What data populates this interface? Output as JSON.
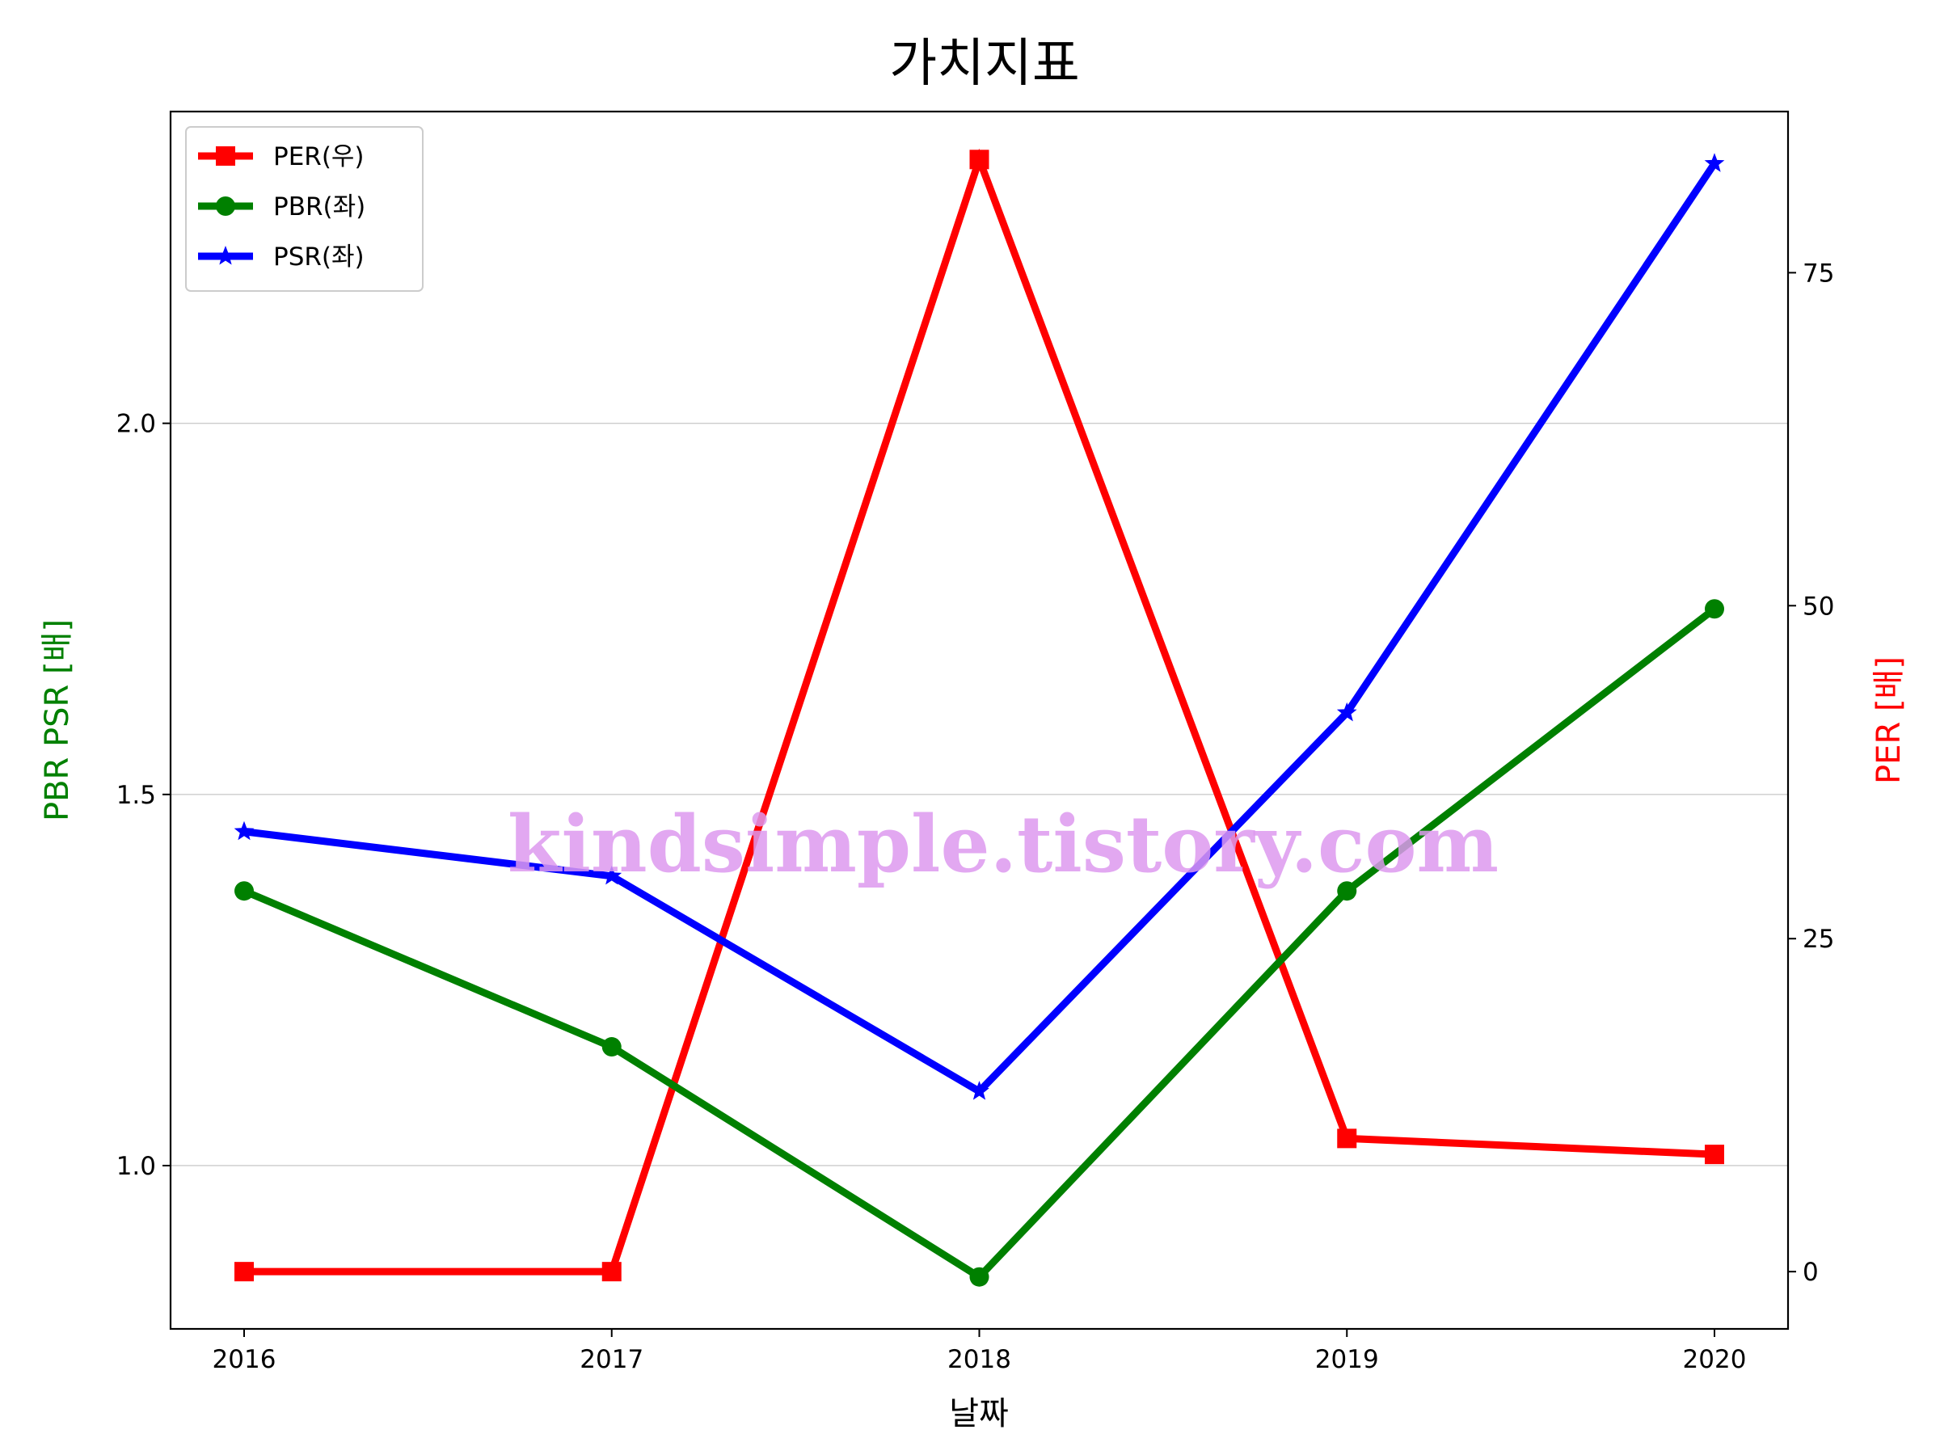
{
  "chart_data": {
    "type": "line",
    "title": "가치지표",
    "xlabel": "날짜",
    "ylabel_left": "PBR PSR [배]",
    "ylabel_right": "PER [배]",
    "categories": [
      "2016",
      "2017",
      "2018",
      "2019",
      "2020"
    ],
    "left_axis": {
      "ylim": [
        0.78,
        2.42
      ],
      "ticks": [
        1.0,
        1.5,
        2.0
      ],
      "tick_labels": [
        "1.0",
        "1.5",
        "2.0"
      ]
    },
    "right_axis": {
      "ylim": [
        -4.3,
        87.1
      ],
      "ticks": [
        0,
        25,
        50,
        75
      ],
      "tick_labels": [
        "0",
        "25",
        "50",
        "75"
      ]
    },
    "series": [
      {
        "name": "PER(우)",
        "axis": "right",
        "color": "#ff0000",
        "marker": "square",
        "values": [
          0,
          0,
          83.5,
          10,
          8.8
        ]
      },
      {
        "name": "PBR(좌)",
        "axis": "left",
        "color": "#008000",
        "marker": "circle",
        "values": [
          1.37,
          1.16,
          0.85,
          1.37,
          1.75
        ]
      },
      {
        "name": "PSR(좌)",
        "axis": "left",
        "color": "#0000ff",
        "marker": "star",
        "values": [
          1.45,
          1.39,
          1.1,
          1.61,
          2.35
        ]
      }
    ],
    "grid": "horizontal (left axis)",
    "legend_position": "upper-left",
    "watermark": "kindsimple.tistory.com"
  }
}
